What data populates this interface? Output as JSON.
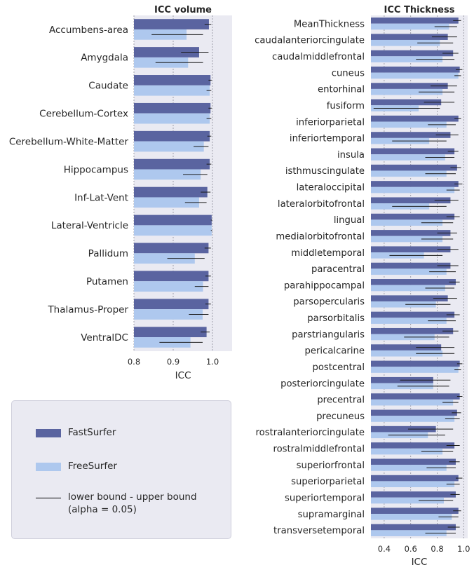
{
  "legend": {
    "fastsurfer_label": "FastSurfer",
    "freesurfer_label": "FreeSurfer",
    "bounds_label": "lower bound - upper bound\n(alpha = 0.05)",
    "colors": {
      "fastsurfer": "#5a64a0",
      "freesurfer": "#aec8ee",
      "background": "#eaeaf2"
    }
  },
  "chart_data": [
    {
      "type": "bar",
      "orientation": "horizontal",
      "title": "ICC volume",
      "xlabel": "ICC",
      "xlim": [
        0.8,
        1.05
      ],
      "xticks": [
        "0.8",
        "0.9",
        "1.0"
      ],
      "grid": "vertical dashed",
      "categories": [
        "Accumbens-area",
        "Amygdala",
        "Caudate",
        "Cerebellum-Cortex",
        "Cerebellum-White-Matter",
        "Hippocampus",
        "Inf-Lat-Vent",
        "Lateral-Ventricle",
        "Pallidum",
        "Putamen",
        "Thalamus-Proper",
        "VentralDC"
      ],
      "series": [
        {
          "name": "FastSurfer",
          "values": [
            0.991,
            0.966,
            0.995,
            0.995,
            0.993,
            0.993,
            0.987,
            0.998,
            0.99,
            0.99,
            0.99,
            0.985
          ],
          "lower": [
            0.98,
            0.92,
            0.99,
            0.99,
            0.987,
            0.985,
            0.97,
            0.996,
            0.98,
            0.982,
            0.982,
            0.97
          ],
          "upper": [
            0.997,
            0.99,
            0.998,
            0.998,
            0.997,
            0.997,
            0.995,
            0.999,
            0.996,
            0.996,
            0.996,
            0.993
          ]
        },
        {
          "name": "FreeSurfer",
          "values": [
            0.934,
            0.938,
            0.993,
            0.993,
            0.978,
            0.97,
            0.966,
            0.998,
            0.955,
            0.976,
            0.975,
            0.944
          ],
          "lower": [
            0.845,
            0.855,
            0.985,
            0.985,
            0.952,
            0.925,
            0.93,
            0.996,
            0.885,
            0.955,
            0.94,
            0.865
          ],
          "upper": [
            0.976,
            0.976,
            0.997,
            0.997,
            0.99,
            0.987,
            0.985,
            0.999,
            0.98,
            0.99,
            0.99,
            0.975
          ]
        }
      ]
    },
    {
      "type": "bar",
      "orientation": "horizontal",
      "title": "ICC Thickness",
      "xlabel": "ICC",
      "xlim": [
        0.3,
        1.03
      ],
      "xticks": [
        "0.4",
        "0.6",
        "0.8",
        "1.0"
      ],
      "grid": "vertical dashed",
      "categories": [
        "MeanThickness",
        "caudalanteriorcingulate",
        "caudalmiddlefrontal",
        "cuneus",
        "entorhinal",
        "fusiform",
        "inferiorparietal",
        "inferiortemporal",
        "insula",
        "isthmuscingulate",
        "lateraloccipital",
        "lateralorbitofrontal",
        "lingual",
        "medialorbitofrontal",
        "middletemporal",
        "paracentral",
        "parahippocampal",
        "parsopercularis",
        "parsorbitalis",
        "parstriangularis",
        "pericalcarine",
        "postcentral",
        "posteriorcingulate",
        "precentral",
        "precuneus",
        "rostralanteriorcingulate",
        "rostralmiddlefrontal",
        "superiorfrontal",
        "superiorparietal",
        "superiortemporal",
        "supramarginal",
        "transversetemporal"
      ],
      "series": [
        {
          "name": "FastSurfer",
          "values": [
            0.96,
            0.88,
            0.92,
            0.97,
            0.88,
            0.83,
            0.96,
            0.9,
            0.93,
            0.95,
            0.96,
            0.9,
            0.93,
            0.9,
            0.9,
            0.9,
            0.94,
            0.88,
            0.93,
            0.92,
            0.83,
            0.97,
            0.77,
            0.97,
            0.95,
            0.79,
            0.93,
            0.94,
            0.96,
            0.94,
            0.96,
            0.94
          ],
          "lower": [
            0.92,
            0.76,
            0.84,
            0.94,
            0.75,
            0.7,
            0.93,
            0.79,
            0.88,
            0.9,
            0.93,
            0.78,
            0.87,
            0.8,
            0.8,
            0.8,
            0.89,
            0.77,
            0.87,
            0.84,
            0.64,
            0.95,
            0.52,
            0.95,
            0.91,
            0.58,
            0.87,
            0.89,
            0.94,
            0.9,
            0.92,
            0.88
          ],
          "upper": [
            0.98,
            0.95,
            0.96,
            0.99,
            0.95,
            0.93,
            0.98,
            0.96,
            0.96,
            0.98,
            0.99,
            0.96,
            0.97,
            0.95,
            0.96,
            0.96,
            0.97,
            0.95,
            0.97,
            0.96,
            0.93,
            0.99,
            0.9,
            0.99,
            0.98,
            0.92,
            0.97,
            0.97,
            0.99,
            0.97,
            0.98,
            0.97
          ]
        },
        {
          "name": "FreeSurfer",
          "values": [
            0.89,
            0.82,
            0.84,
            0.96,
            0.84,
            0.66,
            0.87,
            0.74,
            0.86,
            0.87,
            0.93,
            0.74,
            0.84,
            0.84,
            0.7,
            0.87,
            0.86,
            0.79,
            0.87,
            0.78,
            0.84,
            0.96,
            0.77,
            0.92,
            0.93,
            0.73,
            0.84,
            0.87,
            0.93,
            0.85,
            0.91,
            0.87
          ],
          "lower": [
            0.78,
            0.65,
            0.64,
            0.93,
            0.66,
            0.32,
            0.73,
            0.46,
            0.71,
            0.71,
            0.87,
            0.46,
            0.68,
            0.68,
            0.44,
            0.74,
            0.71,
            0.56,
            0.73,
            0.55,
            0.64,
            0.93,
            0.5,
            0.84,
            0.86,
            0.43,
            0.68,
            0.72,
            0.87,
            0.66,
            0.81,
            0.71
          ],
          "upper": [
            0.95,
            0.92,
            0.93,
            0.98,
            0.93,
            0.82,
            0.94,
            0.87,
            0.93,
            0.94,
            0.97,
            0.87,
            0.92,
            0.92,
            0.84,
            0.94,
            0.93,
            0.9,
            0.94,
            0.89,
            0.93,
            0.98,
            0.89,
            0.96,
            0.97,
            0.86,
            0.92,
            0.94,
            0.97,
            0.92,
            0.96,
            0.94
          ]
        }
      ]
    }
  ]
}
